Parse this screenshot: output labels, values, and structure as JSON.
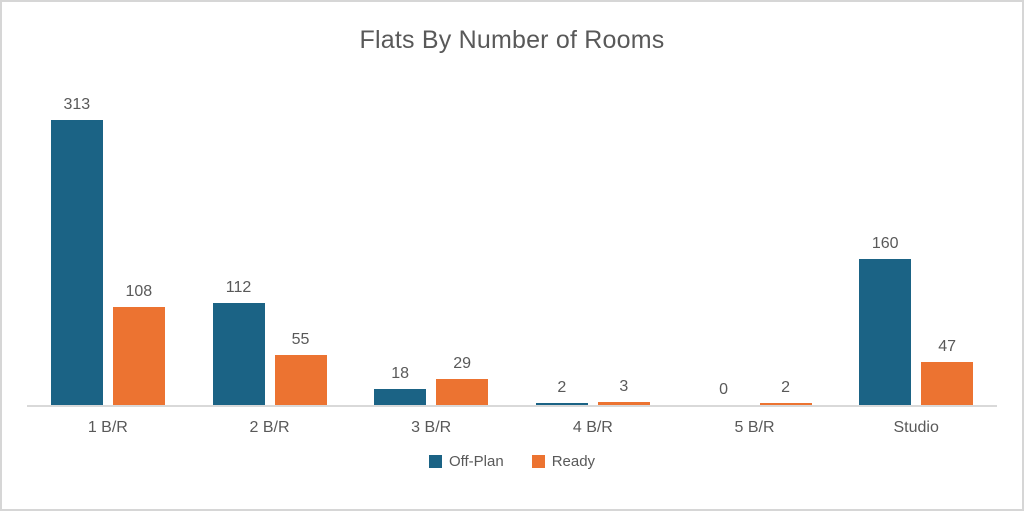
{
  "frame": {
    "background": "#ffffff",
    "border_color": "#d6d6d6"
  },
  "chart_data": {
    "type": "bar",
    "title": "Flats By Number of Rooms",
    "categories": [
      "1 B/R",
      "2 B/R",
      "3 B/R",
      "4 B/R",
      "5 B/R",
      "Studio"
    ],
    "series": [
      {
        "name": "Off-Plan",
        "color": "#1B6385",
        "values": [
          313,
          112,
          18,
          2,
          0,
          160
        ]
      },
      {
        "name": "Ready",
        "color": "#EC7331",
        "values": [
          108,
          55,
          29,
          3,
          2,
          47
        ]
      }
    ],
    "xlabel": "",
    "ylabel": "",
    "ylim": [
      0,
      330
    ],
    "grid": false,
    "legend_position": "bottom",
    "data_labels": true,
    "axis_line_color": "#d9d9d9",
    "title_color": "#595959",
    "label_color": "#595959"
  }
}
